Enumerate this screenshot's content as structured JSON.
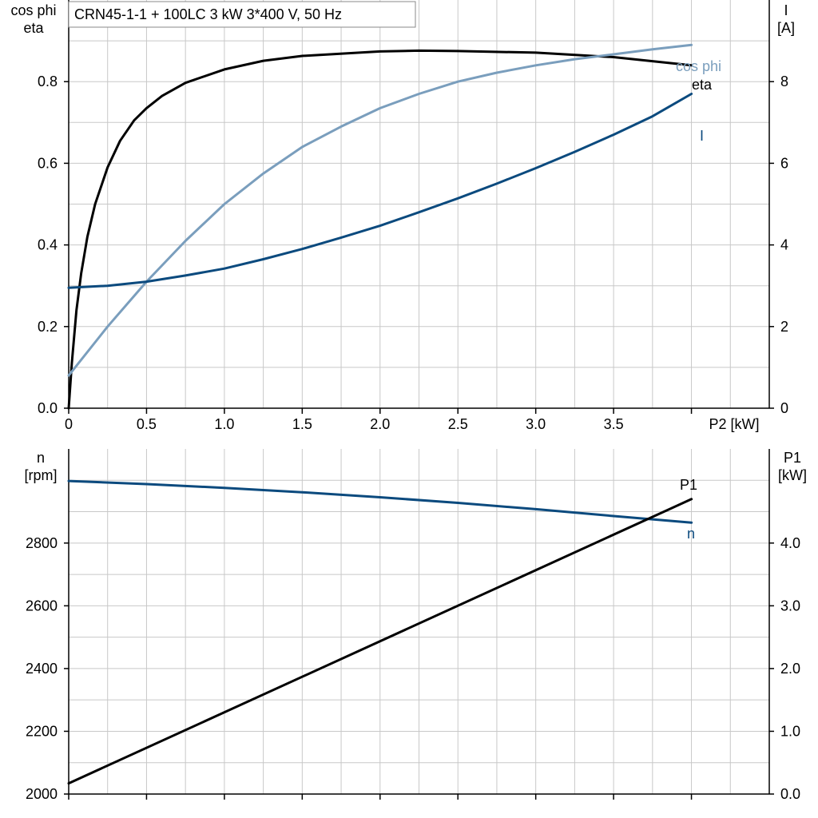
{
  "title": "CRN45-1-1 + 100LC   3 kW   3*400 V, 50 Hz",
  "colors": {
    "black": "#000000",
    "dark_blue": "#0b4a7e",
    "light_blue": "#7a9ebd",
    "grid": "#c8c8c8"
  },
  "chart_data": [
    {
      "type": "line",
      "xlabel": "P2 [kW]",
      "xlim": [
        0,
        4.5
      ],
      "xticks": [
        "0",
        "0.5",
        "1.0",
        "1.5",
        "2.0",
        "2.5",
        "3.0",
        "3.5"
      ],
      "ylabel_left": [
        "cos phi",
        "eta"
      ],
      "ylim_left": [
        0,
        1.0
      ],
      "yticks_left": [
        "0.0",
        "0.2",
        "0.4",
        "0.6",
        "0.8"
      ],
      "ylabel_right": [
        "I",
        "[A]"
      ],
      "ylim_right": [
        0,
        10
      ],
      "yticks_right": [
        "0",
        "2",
        "4",
        "6",
        "8"
      ],
      "grid": true,
      "series": [
        {
          "name": "eta",
          "axis": "left",
          "color": "#000000",
          "x": [
            0,
            0.02,
            0.05,
            0.08,
            0.12,
            0.17,
            0.25,
            0.33,
            0.42,
            0.5,
            0.6,
            0.75,
            1.0,
            1.25,
            1.5,
            2.0,
            2.25,
            2.5,
            3.0,
            3.5,
            4.0
          ],
          "y": [
            0.0,
            0.11,
            0.24,
            0.33,
            0.42,
            0.5,
            0.59,
            0.655,
            0.705,
            0.735,
            0.765,
            0.797,
            0.83,
            0.851,
            0.863,
            0.874,
            0.876,
            0.875,
            0.871,
            0.86,
            0.84
          ]
        },
        {
          "name": "cos phi",
          "axis": "left",
          "color": "#7a9ebd",
          "x": [
            0,
            0.25,
            0.5,
            0.75,
            1.0,
            1.25,
            1.5,
            1.75,
            2.0,
            2.25,
            2.5,
            2.75,
            3.0,
            3.25,
            3.5,
            3.75,
            4.0
          ],
          "y": [
            0.08,
            0.2,
            0.31,
            0.41,
            0.5,
            0.575,
            0.64,
            0.69,
            0.735,
            0.77,
            0.8,
            0.822,
            0.84,
            0.855,
            0.867,
            0.879,
            0.89
          ]
        },
        {
          "name": "I",
          "axis": "right",
          "color": "#0b4a7e",
          "x": [
            0,
            0.25,
            0.5,
            0.75,
            1.0,
            1.25,
            1.5,
            1.75,
            2.0,
            2.25,
            2.5,
            2.75,
            3.0,
            3.25,
            3.5,
            3.75,
            4.0
          ],
          "y": [
            2.95,
            3.0,
            3.1,
            3.25,
            3.42,
            3.65,
            3.9,
            4.18,
            4.47,
            4.8,
            5.14,
            5.5,
            5.88,
            6.28,
            6.7,
            7.15,
            7.7
          ]
        }
      ]
    },
    {
      "type": "line",
      "xlim": [
        0,
        4.5
      ],
      "ylabel_left": [
        "n",
        "[rpm]"
      ],
      "ylim_left": [
        2000,
        3100
      ],
      "yticks_left": [
        "2000",
        "2200",
        "2400",
        "2600",
        "2800"
      ],
      "ylabel_right": [
        "P1",
        "[kW]"
      ],
      "ylim_right": [
        0,
        5.5
      ],
      "yticks_right": [
        "0.0",
        "1.0",
        "2.0",
        "3.0",
        "4.0"
      ],
      "grid": true,
      "series": [
        {
          "name": "n",
          "axis": "left",
          "color": "#0b4a7e",
          "x": [
            0,
            0.5,
            1.0,
            1.5,
            2.0,
            2.5,
            3.0,
            3.5,
            4.0
          ],
          "y": [
            2998,
            2988,
            2976,
            2962,
            2946,
            2928,
            2908,
            2886,
            2865
          ]
        },
        {
          "name": "P1",
          "axis": "right",
          "color": "#000000",
          "x": [
            0,
            4.0
          ],
          "y": [
            0.17,
            4.7
          ]
        }
      ]
    }
  ]
}
